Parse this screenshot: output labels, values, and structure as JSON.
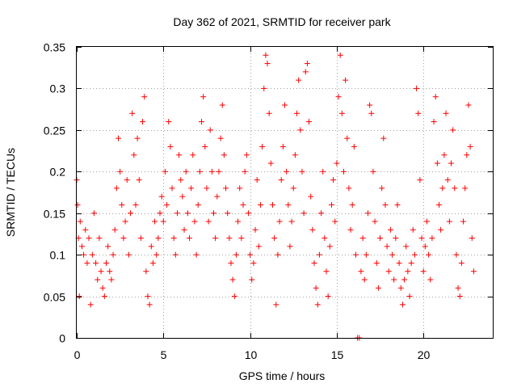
{
  "chart_data": {
    "type": "scatter",
    "title": "Day 362 of 2021, SRMTID for receiver park",
    "xlabel": "GPS time / hours",
    "ylabel": "SRMTID / TECUs",
    "xlim": [
      0,
      24
    ],
    "ylim": [
      0,
      0.35
    ],
    "xticks": [
      0,
      5,
      10,
      15,
      20
    ],
    "xtick_labels": [
      "0",
      "5",
      "10",
      "15",
      "20"
    ],
    "yticks": [
      0,
      0.05,
      0.1,
      0.15,
      0.2,
      0.25,
      0.3,
      0.35
    ],
    "ytick_labels": [
      "0",
      "0.05",
      "0.1",
      "0.15",
      "0.2",
      "0.25",
      "0.3",
      "0.35"
    ],
    "grid": true,
    "marker": "plus",
    "color": "#ff0000",
    "series": [
      {
        "name": "SRMTID",
        "points": [
          [
            0.0,
            0.19
          ],
          [
            0.05,
            0.16
          ],
          [
            0.1,
            0.12
          ],
          [
            0.15,
            0.05
          ],
          [
            0.2,
            0.14
          ],
          [
            0.3,
            0.11
          ],
          [
            0.4,
            0.1
          ],
          [
            0.5,
            0.13
          ],
          [
            0.6,
            0.09
          ],
          [
            0.7,
            0.12
          ],
          [
            0.8,
            0.04
          ],
          [
            0.9,
            0.1
          ],
          [
            1.0,
            0.15
          ],
          [
            1.1,
            0.09
          ],
          [
            1.2,
            0.07
          ],
          [
            1.3,
            0.12
          ],
          [
            1.4,
            0.08
          ],
          [
            1.5,
            0.06
          ],
          [
            1.6,
            0.05
          ],
          [
            1.7,
            0.09
          ],
          [
            1.8,
            0.11
          ],
          [
            1.9,
            0.08
          ],
          [
            2.0,
            0.07
          ],
          [
            2.1,
            0.1
          ],
          [
            2.2,
            0.13
          ],
          [
            2.3,
            0.18
          ],
          [
            2.4,
            0.24
          ],
          [
            2.5,
            0.2
          ],
          [
            2.6,
            0.16
          ],
          [
            2.7,
            0.12
          ],
          [
            2.8,
            0.14
          ],
          [
            2.9,
            0.19
          ],
          [
            3.0,
            0.1
          ],
          [
            3.1,
            0.15
          ],
          [
            3.2,
            0.27
          ],
          [
            3.3,
            0.22
          ],
          [
            3.4,
            0.16
          ],
          [
            3.5,
            0.24
          ],
          [
            3.6,
            0.19
          ],
          [
            3.7,
            0.12
          ],
          [
            3.8,
            0.26
          ],
          [
            3.9,
            0.29
          ],
          [
            4.0,
            0.08
          ],
          [
            4.1,
            0.05
          ],
          [
            4.2,
            0.04
          ],
          [
            4.3,
            0.11
          ],
          [
            4.4,
            0.09
          ],
          [
            4.5,
            0.14
          ],
          [
            4.6,
            0.1
          ],
          [
            4.7,
            0.12
          ],
          [
            4.8,
            0.15
          ],
          [
            4.9,
            0.17
          ],
          [
            5.0,
            0.14
          ],
          [
            5.1,
            0.2
          ],
          [
            5.2,
            0.16
          ],
          [
            5.3,
            0.26
          ],
          [
            5.4,
            0.23
          ],
          [
            5.5,
            0.18
          ],
          [
            5.6,
            0.12
          ],
          [
            5.7,
            0.1
          ],
          [
            5.8,
            0.15
          ],
          [
            5.9,
            0.22
          ],
          [
            6.0,
            0.19
          ],
          [
            6.1,
            0.17
          ],
          [
            6.2,
            0.13
          ],
          [
            6.3,
            0.2
          ],
          [
            6.4,
            0.15
          ],
          [
            6.5,
            0.12
          ],
          [
            6.6,
            0.18
          ],
          [
            6.7,
            0.22
          ],
          [
            6.8,
            0.14
          ],
          [
            6.9,
            0.1
          ],
          [
            7.0,
            0.16
          ],
          [
            7.1,
            0.2
          ],
          [
            7.2,
            0.26
          ],
          [
            7.3,
            0.29
          ],
          [
            7.4,
            0.23
          ],
          [
            7.5,
            0.18
          ],
          [
            7.6,
            0.14
          ],
          [
            7.7,
            0.25
          ],
          [
            7.8,
            0.2
          ],
          [
            7.9,
            0.15
          ],
          [
            8.0,
            0.12
          ],
          [
            8.1,
            0.17
          ],
          [
            8.2,
            0.2
          ],
          [
            8.3,
            0.24
          ],
          [
            8.4,
            0.28
          ],
          [
            8.5,
            0.22
          ],
          [
            8.6,
            0.18
          ],
          [
            8.7,
            0.15
          ],
          [
            8.8,
            0.12
          ],
          [
            8.9,
            0.09
          ],
          [
            9.0,
            0.07
          ],
          [
            9.1,
            0.05
          ],
          [
            9.2,
            0.1
          ],
          [
            9.3,
            0.14
          ],
          [
            9.4,
            0.18
          ],
          [
            9.5,
            0.12
          ],
          [
            9.6,
            0.16
          ],
          [
            9.7,
            0.2
          ],
          [
            9.8,
            0.22
          ],
          [
            9.9,
            0.15
          ],
          [
            10.0,
            0.1
          ],
          [
            10.1,
            0.07
          ],
          [
            10.2,
            0.09
          ],
          [
            10.3,
            0.13
          ],
          [
            10.4,
            0.19
          ],
          [
            10.5,
            0.11
          ],
          [
            10.6,
            0.16
          ],
          [
            10.7,
            0.23
          ],
          [
            10.8,
            0.3
          ],
          [
            10.9,
            0.34
          ],
          [
            11.0,
            0.33
          ],
          [
            11.1,
            0.27
          ],
          [
            11.2,
            0.21
          ],
          [
            11.3,
            0.16
          ],
          [
            11.4,
            0.12
          ],
          [
            11.5,
            0.04
          ],
          [
            11.6,
            0.1
          ],
          [
            11.7,
            0.14
          ],
          [
            11.8,
            0.19
          ],
          [
            11.9,
            0.23
          ],
          [
            12.0,
            0.28
          ],
          [
            12.1,
            0.2
          ],
          [
            12.2,
            0.16
          ],
          [
            12.3,
            0.11
          ],
          [
            12.4,
            0.14
          ],
          [
            12.5,
            0.18
          ],
          [
            12.6,
            0.22
          ],
          [
            12.7,
            0.27
          ],
          [
            12.8,
            0.31
          ],
          [
            12.9,
            0.25
          ],
          [
            13.0,
            0.2
          ],
          [
            13.1,
            0.15
          ],
          [
            13.2,
            0.32
          ],
          [
            13.3,
            0.33
          ],
          [
            13.4,
            0.26
          ],
          [
            13.5,
            0.17
          ],
          [
            13.6,
            0.13
          ],
          [
            13.7,
            0.09
          ],
          [
            13.8,
            0.06
          ],
          [
            13.9,
            0.04
          ],
          [
            14.0,
            0.1
          ],
          [
            14.1,
            0.15
          ],
          [
            14.2,
            0.2
          ],
          [
            14.3,
            0.12
          ],
          [
            14.4,
            0.08
          ],
          [
            14.5,
            0.05
          ],
          [
            14.6,
            0.11
          ],
          [
            14.7,
            0.16
          ],
          [
            14.8,
            0.19
          ],
          [
            14.9,
            0.14
          ],
          [
            15.0,
            0.21
          ],
          [
            15.1,
            0.29
          ],
          [
            15.2,
            0.34
          ],
          [
            15.3,
            0.27
          ],
          [
            15.4,
            0.2
          ],
          [
            15.5,
            0.31
          ],
          [
            15.6,
            0.24
          ],
          [
            15.7,
            0.18
          ],
          [
            15.8,
            0.13
          ],
          [
            15.9,
            0.16
          ],
          [
            16.0,
            0.23
          ],
          [
            16.1,
            0.1
          ],
          [
            16.2,
            0.0
          ],
          [
            16.3,
            0.0
          ],
          [
            16.4,
            0.08
          ],
          [
            16.5,
            0.12
          ],
          [
            16.6,
            0.07
          ],
          [
            16.7,
            0.1
          ],
          [
            16.8,
            0.15
          ],
          [
            16.9,
            0.28
          ],
          [
            17.0,
            0.27
          ],
          [
            17.1,
            0.2
          ],
          [
            17.2,
            0.14
          ],
          [
            17.3,
            0.09
          ],
          [
            17.4,
            0.06
          ],
          [
            17.5,
            0.12
          ],
          [
            17.6,
            0.18
          ],
          [
            17.7,
            0.24
          ],
          [
            17.8,
            0.16
          ],
          [
            17.9,
            0.11
          ],
          [
            18.0,
            0.08
          ],
          [
            18.1,
            0.13
          ],
          [
            18.2,
            0.1
          ],
          [
            18.3,
            0.07
          ],
          [
            18.4,
            0.12
          ],
          [
            18.5,
            0.16
          ],
          [
            18.6,
            0.09
          ],
          [
            18.7,
            0.06
          ],
          [
            18.8,
            0.04
          ],
          [
            18.9,
            0.07
          ],
          [
            19.0,
            0.11
          ],
          [
            19.1,
            0.08
          ],
          [
            19.2,
            0.05
          ],
          [
            19.3,
            0.09
          ],
          [
            19.4,
            0.13
          ],
          [
            19.5,
            0.1
          ],
          [
            19.6,
            0.3
          ],
          [
            19.7,
            0.27
          ],
          [
            19.8,
            0.19
          ],
          [
            19.9,
            0.12
          ],
          [
            20.0,
            0.08
          ],
          [
            20.1,
            0.11
          ],
          [
            20.2,
            0.14
          ],
          [
            20.3,
            0.1
          ],
          [
            20.4,
            0.07
          ],
          [
            20.5,
            0.12
          ],
          [
            20.6,
            0.26
          ],
          [
            20.7,
            0.29
          ],
          [
            20.8,
            0.21
          ],
          [
            20.9,
            0.16
          ],
          [
            21.0,
            0.13
          ],
          [
            21.1,
            0.18
          ],
          [
            21.2,
            0.22
          ],
          [
            21.3,
            0.27
          ],
          [
            21.4,
            0.19
          ],
          [
            21.5,
            0.14
          ],
          [
            21.6,
            0.21
          ],
          [
            21.7,
            0.25
          ],
          [
            21.8,
            0.18
          ],
          [
            21.9,
            0.1
          ],
          [
            22.0,
            0.06
          ],
          [
            22.1,
            0.05
          ],
          [
            22.2,
            0.09
          ],
          [
            22.3,
            0.14
          ],
          [
            22.4,
            0.18
          ],
          [
            22.5,
            0.22
          ],
          [
            22.6,
            0.28
          ],
          [
            22.7,
            0.23
          ],
          [
            22.8,
            0.12
          ],
          [
            22.9,
            0.08
          ]
        ]
      }
    ]
  }
}
